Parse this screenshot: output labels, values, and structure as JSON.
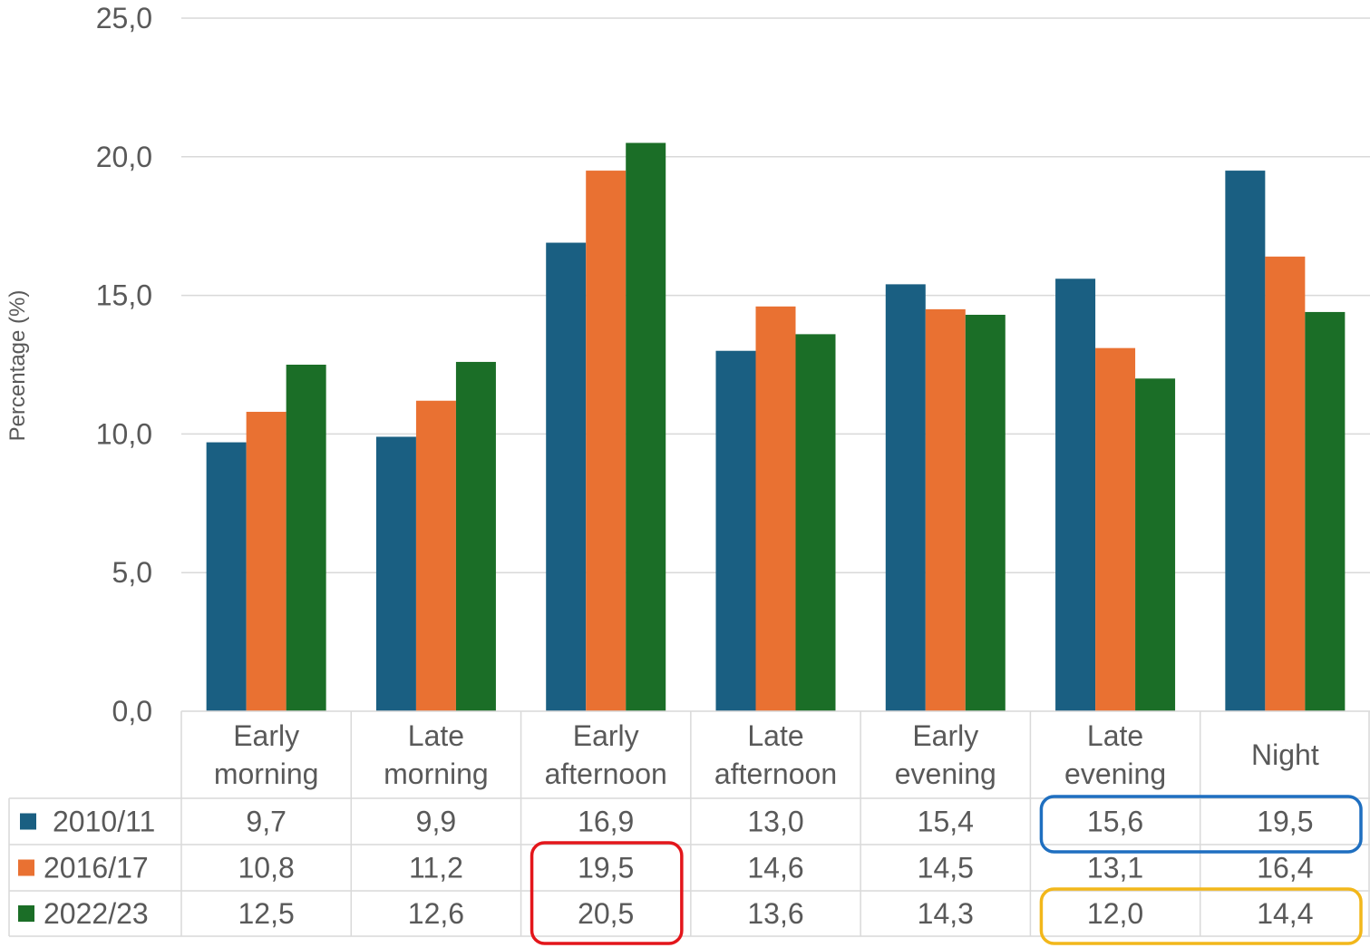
{
  "chart_data": {
    "type": "bar",
    "ylabel": "Percentage (%)",
    "ylim": [
      0,
      25
    ],
    "yticks": [
      "0,0",
      "5,0",
      "10,0",
      "15,0",
      "20,0",
      "25,0"
    ],
    "grid": true,
    "legend_position": "data-table-left",
    "categories": [
      [
        "Early",
        "morning"
      ],
      [
        "Late",
        "morning"
      ],
      [
        "Early",
        "afternoon"
      ],
      [
        "Late",
        "afternoon"
      ],
      [
        "Early",
        "evening"
      ],
      [
        "Late",
        "evening"
      ],
      [
        "Night"
      ]
    ],
    "series": [
      {
        "name": "2010/11",
        "color": "#1a5f82",
        "values": [
          9.7,
          9.9,
          16.9,
          13.0,
          15.4,
          15.6,
          19.5
        ],
        "labels": [
          "9,7",
          "9,9",
          "16,9",
          "13,0",
          "15,4",
          "15,6",
          "19,5"
        ]
      },
      {
        "name": "2016/17",
        "color": "#e97132",
        "values": [
          10.8,
          11.2,
          19.5,
          14.6,
          14.5,
          13.1,
          16.4
        ],
        "labels": [
          "10,8",
          "11,2",
          "19,5",
          "14,6",
          "14,5",
          "13,1",
          "16,4"
        ]
      },
      {
        "name": "2022/23",
        "color": "#1b6e27",
        "values": [
          12.5,
          12.6,
          20.5,
          13.6,
          14.3,
          12.0,
          14.4
        ],
        "labels": [
          "12,5",
          "12,6",
          "20,5",
          "13,6",
          "14,3",
          "12,0",
          "14,4"
        ]
      }
    ],
    "highlights": [
      {
        "color": "#e3161b",
        "series": [
          1,
          2
        ],
        "categories": [
          2
        ]
      },
      {
        "color": "#1f6fc0",
        "series": [
          0
        ],
        "categories": [
          5,
          6
        ]
      },
      {
        "color": "#f2b71b",
        "series": [
          2
        ],
        "categories": [
          5,
          6
        ]
      }
    ]
  }
}
